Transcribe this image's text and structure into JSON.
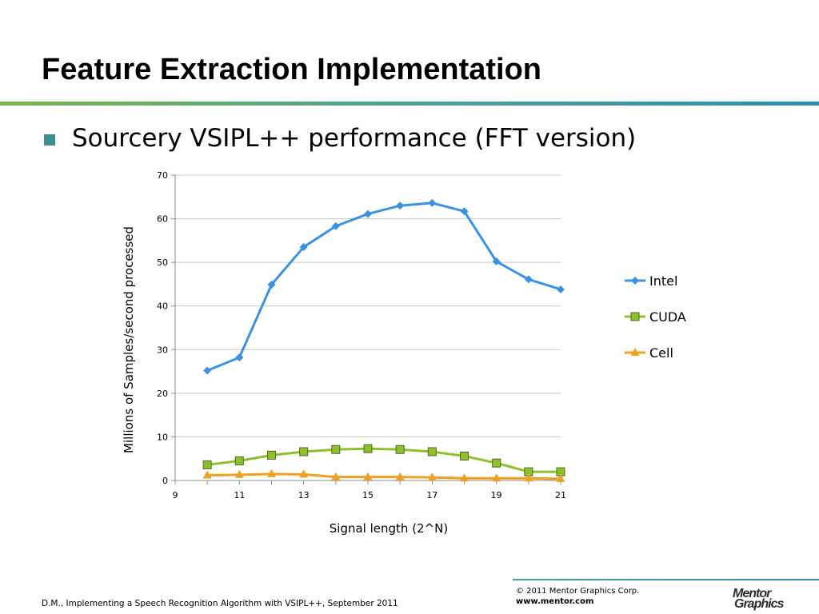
{
  "slide": {
    "title": "Feature Extraction Implementation",
    "bullet": "Sourcery VSIPL++ performance (FFT version)"
  },
  "chart_data": {
    "type": "line",
    "title": "",
    "xlabel": "Signal length (2^N)",
    "ylabel": "Millions of Samples/second processed",
    "xlim": [
      9,
      21
    ],
    "ylim": [
      0,
      70
    ],
    "xticks": [
      9,
      11,
      13,
      15,
      17,
      19,
      21
    ],
    "yticks": [
      0,
      10,
      20,
      30,
      40,
      50,
      60,
      70
    ],
    "grid": "horizontal",
    "legend": "right",
    "x": [
      10,
      11,
      12,
      13,
      14,
      15,
      16,
      17,
      18,
      19,
      20,
      21
    ],
    "series": [
      {
        "name": "Intel",
        "color": "#3b92e4",
        "marker": "diamond",
        "values": [
          25.2,
          28.2,
          44.9,
          53.5,
          58.3,
          61.1,
          63.0,
          63.6,
          61.7,
          50.2,
          46.1,
          43.8
        ]
      },
      {
        "name": "CUDA",
        "color": "#8dc12c",
        "marker": "square",
        "values": [
          3.6,
          4.5,
          5.8,
          6.6,
          7.1,
          7.3,
          7.1,
          6.6,
          5.6,
          4.0,
          2.0,
          2.0
        ]
      },
      {
        "name": "Cell",
        "color": "#f0a020",
        "marker": "triangle",
        "values": [
          1.2,
          1.3,
          1.5,
          1.4,
          0.8,
          0.8,
          0.8,
          0.7,
          0.5,
          0.5,
          0.5,
          0.4
        ]
      }
    ]
  },
  "footer": {
    "citation": "D.M., Implementing a Speech Recognition Algorithm with VSIPL++, September 2011",
    "copyright": "© 2011 Mentor Graphics Corp.",
    "url": "www.mentor.com",
    "logo_line1": "Mentor",
    "logo_line2": "Graphics"
  }
}
